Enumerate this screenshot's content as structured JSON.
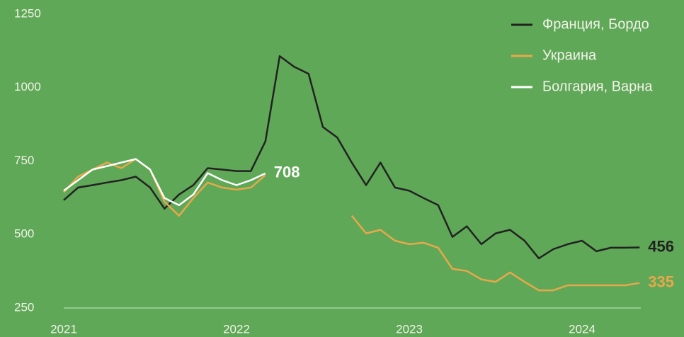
{
  "chart_data": {
    "type": "line",
    "x": [
      2021,
      2021.083,
      2021.167,
      2021.25,
      2021.333,
      2021.417,
      2021.5,
      2021.583,
      2021.667,
      2021.75,
      2021.833,
      2021.917,
      2022,
      2022.083,
      2022.167,
      2022.25,
      2022.333,
      2022.417,
      2022.5,
      2022.583,
      2022.667,
      2022.75,
      2022.833,
      2022.917,
      2023,
      2023.083,
      2023.167,
      2023.25,
      2023.333,
      2023.417,
      2023.5,
      2023.583,
      2023.667,
      2023.75,
      2023.833,
      2023.917,
      2024,
      2024.083,
      2024.167,
      2024.25,
      2024.333
    ],
    "series": [
      {
        "name": "Франция, Бордо",
        "color": "#222222",
        "values": [
          617,
          660,
          668,
          677,
          685,
          697,
          660,
          588,
          636,
          668,
          726,
          721,
          716,
          716,
          817,
          1107,
          1071,
          1047,
          866,
          830,
          745,
          668,
          745,
          660,
          649,
          624,
          600,
          492,
          528,
          467,
          504,
          516,
          479,
          419,
          450,
          467,
          479,
          443,
          455,
          455,
          456
        ]
      },
      {
        "name": "Украина",
        "color": "#e8a84a",
        "values": [
          644,
          697,
          721,
          745,
          726,
          757,
          721,
          612,
          564,
          624,
          677,
          660,
          653,
          660,
          702,
          null,
          null,
          null,
          null,
          null,
          564,
          504,
          516,
          479,
          467,
          472,
          455,
          383,
          376,
          347,
          339,
          371,
          339,
          310,
          310,
          327,
          327,
          327,
          327,
          327,
          335
        ]
      },
      {
        "name": "Болгария, Варна",
        "color": "#ffffff",
        "values": [
          649,
          685,
          721,
          733,
          745,
          757,
          721,
          624,
          600,
          636,
          709,
          685,
          668,
          685,
          708,
          null,
          null,
          null,
          null,
          null,
          null,
          null,
          null,
          null,
          null,
          null,
          null,
          null,
          null,
          null,
          null,
          null,
          null,
          null,
          null,
          null,
          null,
          null,
          null,
          null,
          null
        ]
      }
    ],
    "xlim": [
      2021,
      2024.34
    ],
    "xticks": [
      2021,
      2022,
      2023,
      2024
    ],
    "ylim": [
      250,
      1250
    ],
    "yticks": [
      250,
      500,
      750,
      1000,
      1250
    ],
    "grid": false,
    "legend": "top-right"
  }
}
